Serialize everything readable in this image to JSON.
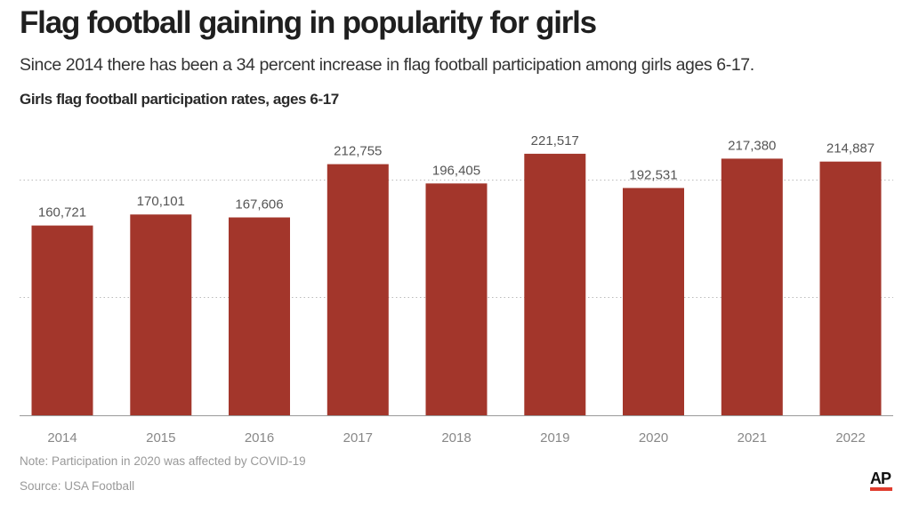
{
  "title": "Flag football gaining in popularity for girls",
  "subtitle": "Since 2014 there has been a 34 percent increase in flag football participation among girls ages 6-17.",
  "chart_label": "Girls flag football participation rates, ages 6-17",
  "note": "Note: Participation in 2020 was affected by COVID-19",
  "source": "Source: USA Football",
  "logo_text": "AP",
  "colors": {
    "bar": "#a3362b",
    "value_label": "#555555",
    "tick_label": "#888888",
    "grid": "#bbbbbb",
    "baseline": "#999999"
  },
  "chart_data": {
    "type": "bar",
    "title": "Girls flag football participation rates, ages 6-17",
    "xlabel": "",
    "ylabel": "",
    "categories": [
      "2014",
      "2015",
      "2016",
      "2017",
      "2018",
      "2019",
      "2020",
      "2021",
      "2022"
    ],
    "values": [
      160721,
      170101,
      167606,
      212755,
      196405,
      221517,
      192531,
      217380,
      214887
    ],
    "value_labels": [
      "160,721",
      "170,101",
      "167,606",
      "212,755",
      "196,405",
      "221,517",
      "192,531",
      "217,380",
      "214,887"
    ],
    "ylim": [
      0,
      250000
    ],
    "gridlines": [
      100000,
      200000
    ],
    "grid": true,
    "legend": "none"
  }
}
